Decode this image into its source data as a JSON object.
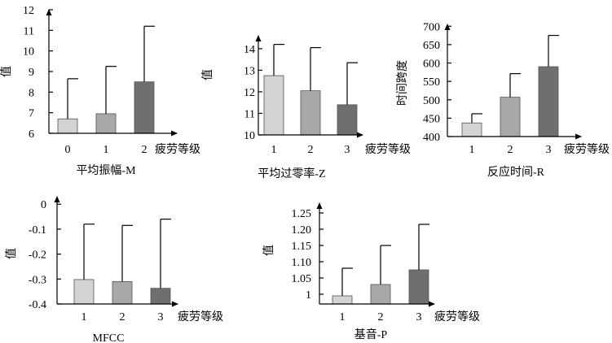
{
  "chart_data": [
    {
      "type": "bar",
      "xlabel": "疲劳等级",
      "ylabel": "值",
      "caption": "平均振幅-M",
      "categories": [
        "0",
        "1",
        "2"
      ],
      "values": [
        6.7,
        6.95,
        8.5
      ],
      "error_upper": [
        8.65,
        9.25,
        11.2
      ],
      "ylim": [
        6,
        12
      ],
      "yticks": [
        "6",
        "7",
        "8",
        "9",
        "10",
        "11",
        "12"
      ],
      "ytick_values": [
        6,
        7,
        8,
        9,
        10,
        11,
        12
      ],
      "bar_colors": [
        "#d3d3d3",
        "#a8a8a8",
        "#6f6f6f"
      ]
    },
    {
      "type": "bar",
      "xlabel": "疲劳等级",
      "ylabel": "值",
      "caption": "平均过零率-Z",
      "categories": [
        "1",
        "2",
        "3"
      ],
      "values": [
        12.75,
        12.05,
        11.4
      ],
      "error_upper": [
        14.2,
        14.05,
        13.35
      ],
      "ylim": [
        10,
        14.6
      ],
      "yticks": [
        "10",
        "11",
        "12",
        "13",
        "14"
      ],
      "ytick_values": [
        10,
        11,
        12,
        13,
        14
      ],
      "bar_colors": [
        "#d3d3d3",
        "#a8a8a8",
        "#6f6f6f"
      ]
    },
    {
      "type": "bar",
      "xlabel": "疲劳等级",
      "ylabel": "时间跨度",
      "caption": "反应时间-R",
      "categories": [
        "1",
        "2",
        "3"
      ],
      "values": [
        437,
        507,
        590
      ],
      "error_upper": [
        462,
        571,
        675
      ],
      "ylim": [
        400,
        705
      ],
      "yticks": [
        "400",
        "450",
        "500",
        "550",
        "600",
        "650",
        "700"
      ],
      "ytick_values": [
        400,
        450,
        500,
        550,
        600,
        650,
        700
      ],
      "bar_colors": [
        "#d3d3d3",
        "#a8a8a8",
        "#6f6f6f"
      ]
    },
    {
      "type": "bar",
      "xlabel": "疲劳等级",
      "ylabel": "值",
      "caption": "MFCC",
      "categories": [
        "1",
        "2",
        "3"
      ],
      "values": [
        -0.302,
        -0.31,
        -0.337
      ],
      "error_upper": [
        -0.08,
        -0.085,
        -0.06
      ],
      "ylim": [
        -0.4,
        0.03
      ],
      "yticks": [
        "-0.4",
        "-0.3",
        "-0.2",
        "-0.1",
        "0"
      ],
      "ytick_values": [
        -0.4,
        -0.3,
        -0.2,
        -0.1,
        0
      ],
      "bar_colors": [
        "#d3d3d3",
        "#a8a8a8",
        "#6f6f6f"
      ]
    },
    {
      "type": "bar",
      "xlabel": "疲劳等级",
      "ylabel": "值",
      "caption": "基音-P",
      "categories": [
        "1",
        "2",
        "3"
      ],
      "values": [
        0.995,
        1.03,
        1.075
      ],
      "error_upper": [
        1.08,
        1.15,
        1.215
      ],
      "ylim": [
        0.97,
        1.28
      ],
      "yticks": [
        "1",
        "1.05",
        "1.10",
        "1.15",
        "1.20",
        "1.25"
      ],
      "ytick_values": [
        1.0,
        1.05,
        1.1,
        1.15,
        1.2,
        1.25
      ],
      "bar_colors": [
        "#d3d3d3",
        "#a8a8a8",
        "#6f6f6f"
      ]
    }
  ]
}
